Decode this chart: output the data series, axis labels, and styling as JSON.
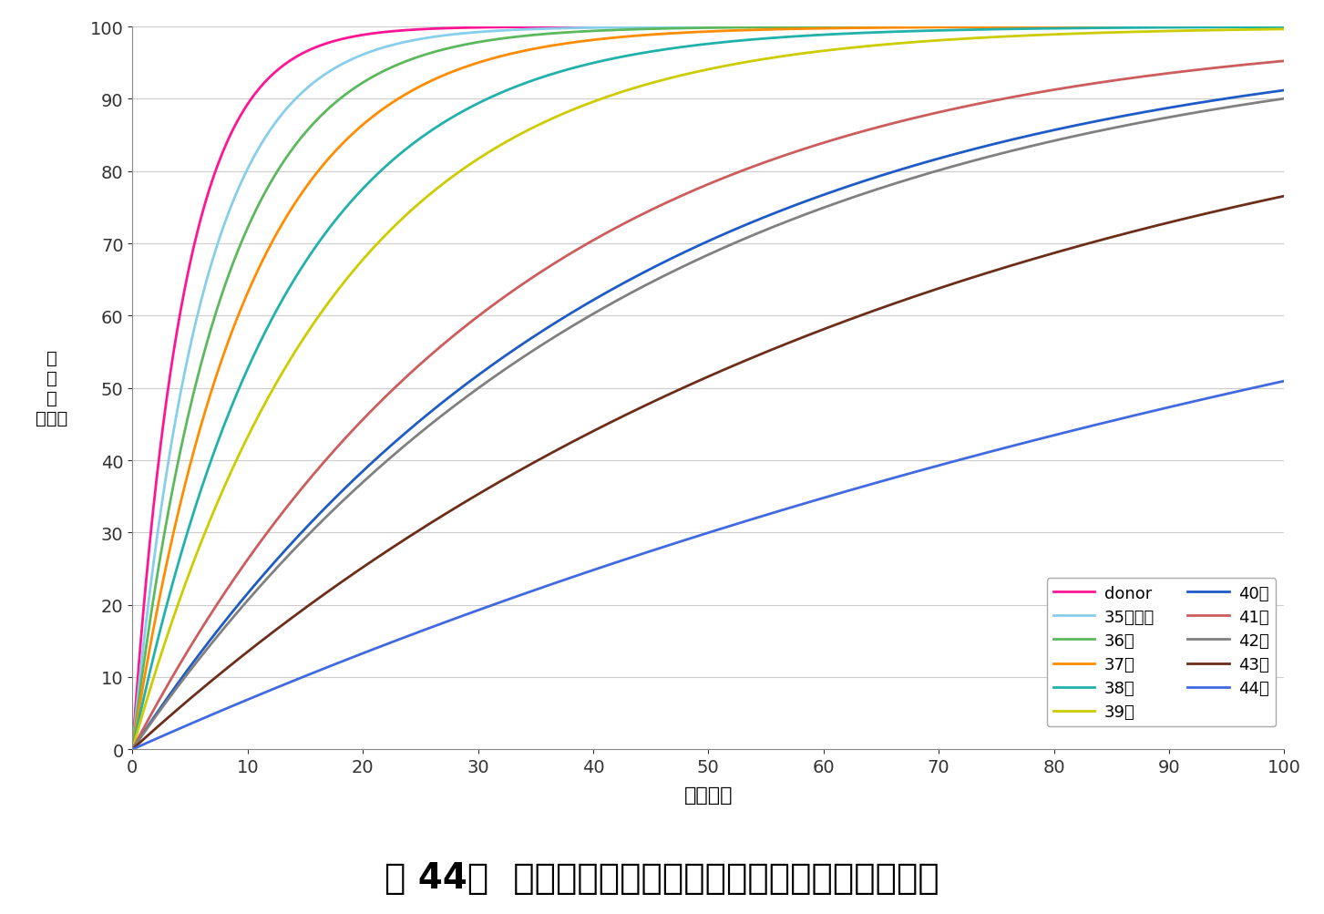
{
  "title": "围 44．  成熟卵子の個数に応じた年齢別妊娠率の推移",
  "xlabel": "採卵個数",
  "ylabel": "妊\n娠\n率\n（％）",
  "xlim": [
    0,
    100
  ],
  "ylim": [
    0,
    100
  ],
  "xticks": [
    0,
    10,
    20,
    30,
    40,
    50,
    60,
    70,
    80,
    90,
    100
  ],
  "yticks": [
    0,
    10,
    20,
    30,
    40,
    50,
    60,
    70,
    80,
    90,
    100
  ],
  "series": [
    {
      "label": "donor",
      "color": "#FF1493",
      "p": 0.2,
      "lw": 2.0
    },
    {
      "label": "35歳以下",
      "color": "#87CEEB",
      "p": 0.15,
      "lw": 2.0
    },
    {
      "label": "36歳",
      "color": "#5CB85C",
      "p": 0.12,
      "lw": 2.0
    },
    {
      "label": "37歳",
      "color": "#FF8C00",
      "p": 0.095,
      "lw": 2.0
    },
    {
      "label": "38歳",
      "color": "#20B2AA",
      "p": 0.072,
      "lw": 2.0
    },
    {
      "label": "39歳",
      "color": "#CCCC00",
      "p": 0.055,
      "lw": 2.0
    },
    {
      "label": "40歳",
      "color": "#1E5BC6",
      "p": 0.024,
      "lw": 2.0
    },
    {
      "label": "41歳",
      "color": "#CD5C5C",
      "p": 0.03,
      "lw": 2.0
    },
    {
      "label": "42歳",
      "color": "#808080",
      "p": 0.0228,
      "lw": 2.0
    },
    {
      "label": "43歳",
      "color": "#6B2E1A",
      "p": 0.0144,
      "lw": 2.0
    },
    {
      "label": "44歳",
      "color": "#4169E1",
      "p": 0.0071,
      "lw": 2.0
    }
  ],
  "col1_labels": [
    "donor",
    "36歳",
    "38歳",
    "40歳",
    "42歳",
    "44歳"
  ],
  "col2_labels": [
    "35歳以下",
    "37歳",
    "39歳",
    "41歳",
    "43歳"
  ],
  "background_color": "#FFFFFF",
  "grid_color": "#CCCCCC"
}
